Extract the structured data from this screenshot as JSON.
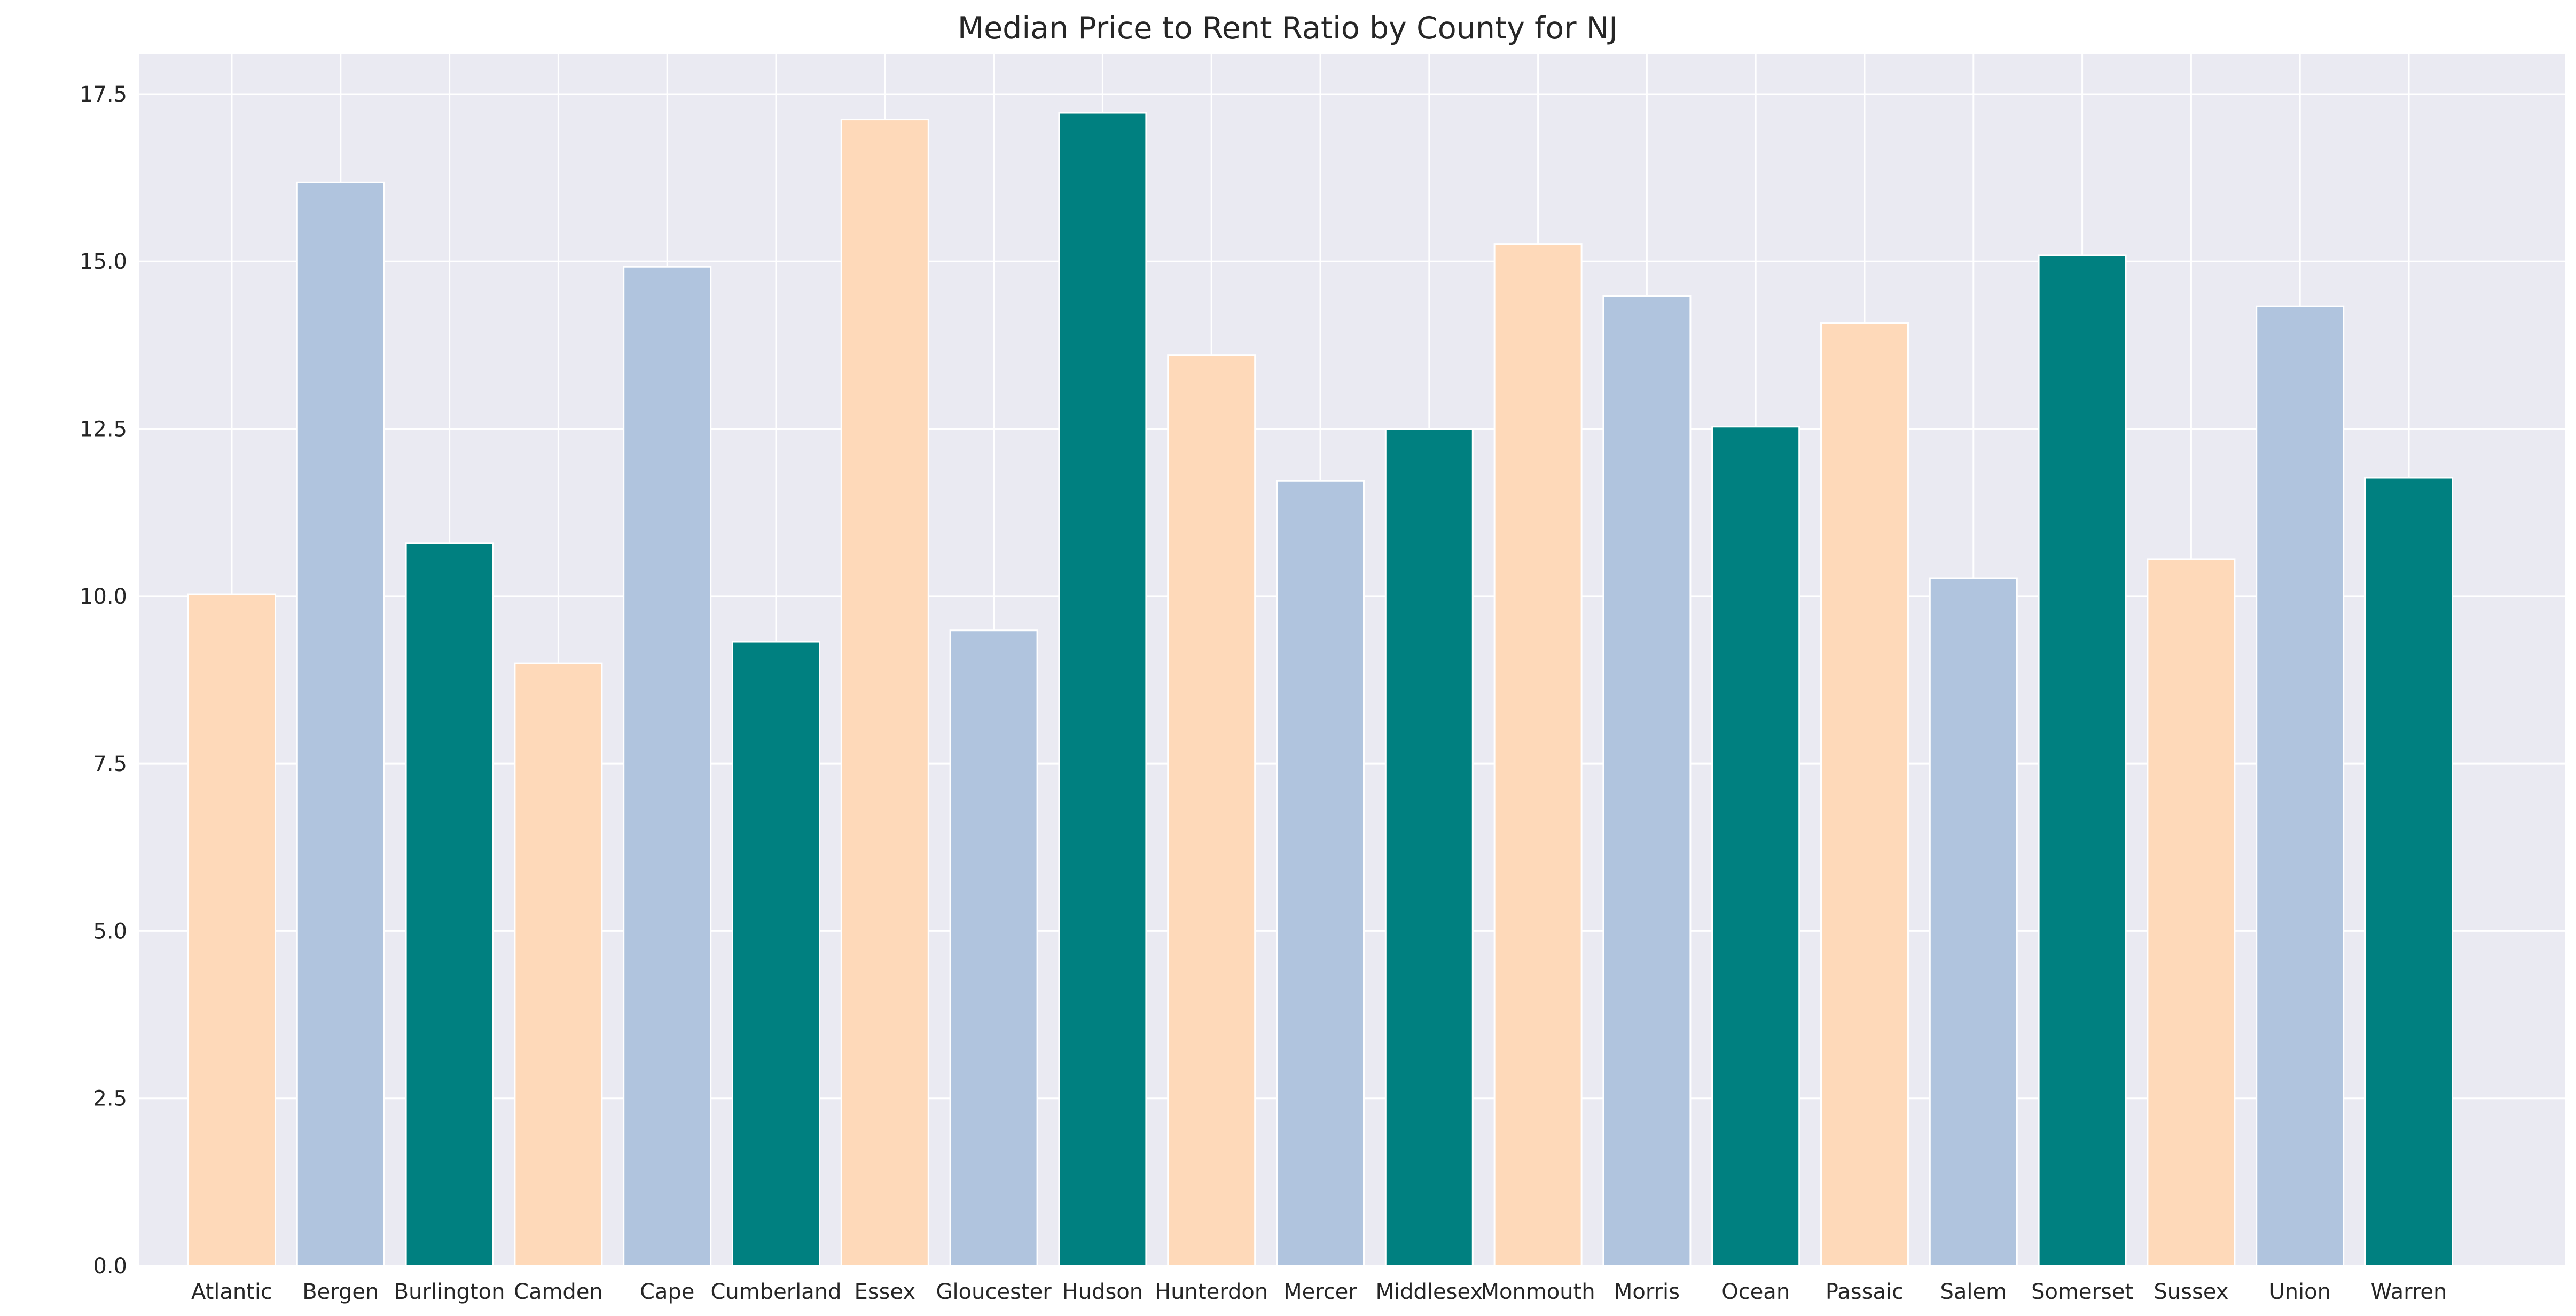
{
  "chart_data": {
    "type": "bar",
    "title": "Median Price to Rent Ratio by County for NJ",
    "xlabel": "",
    "ylabel": "",
    "categories": [
      "Atlantic",
      "Bergen",
      "Burlington",
      "Camden",
      "Cape",
      "Cumberland",
      "Essex",
      "Gloucester",
      "Hudson",
      "Hunterdon",
      "Mercer",
      "Middlesex",
      "Monmouth",
      "Morris",
      "Ocean",
      "Passaic",
      "Salem",
      "Somerset",
      "Sussex",
      "Union",
      "Warren"
    ],
    "values": [
      10.03,
      16.18,
      10.79,
      9.0,
      14.92,
      9.32,
      17.12,
      9.49,
      17.22,
      13.6,
      11.72,
      12.5,
      15.26,
      14.48,
      12.53,
      14.08,
      10.27,
      15.09,
      10.55,
      14.33,
      11.77
    ],
    "colors": [
      "#fed9b9",
      "#b0c4de",
      "#008080",
      "#fed9b9",
      "#b0c4de",
      "#008080",
      "#fed9b9",
      "#b0c4de",
      "#008080",
      "#fed9b9",
      "#b0c4de",
      "#008080",
      "#fed9b9",
      "#b0c4de",
      "#008080",
      "#fed9b9",
      "#b0c4de",
      "#008080",
      "#fed9b9",
      "#b0c4de",
      "#008080"
    ],
    "ylim": [
      0,
      18.09
    ],
    "yticks": [
      "0.0",
      "2.5",
      "5.0",
      "7.5",
      "10.0",
      "12.5",
      "15.0",
      "17.5"
    ],
    "grid": true,
    "legend": "none",
    "background": "#eaeaf2"
  }
}
